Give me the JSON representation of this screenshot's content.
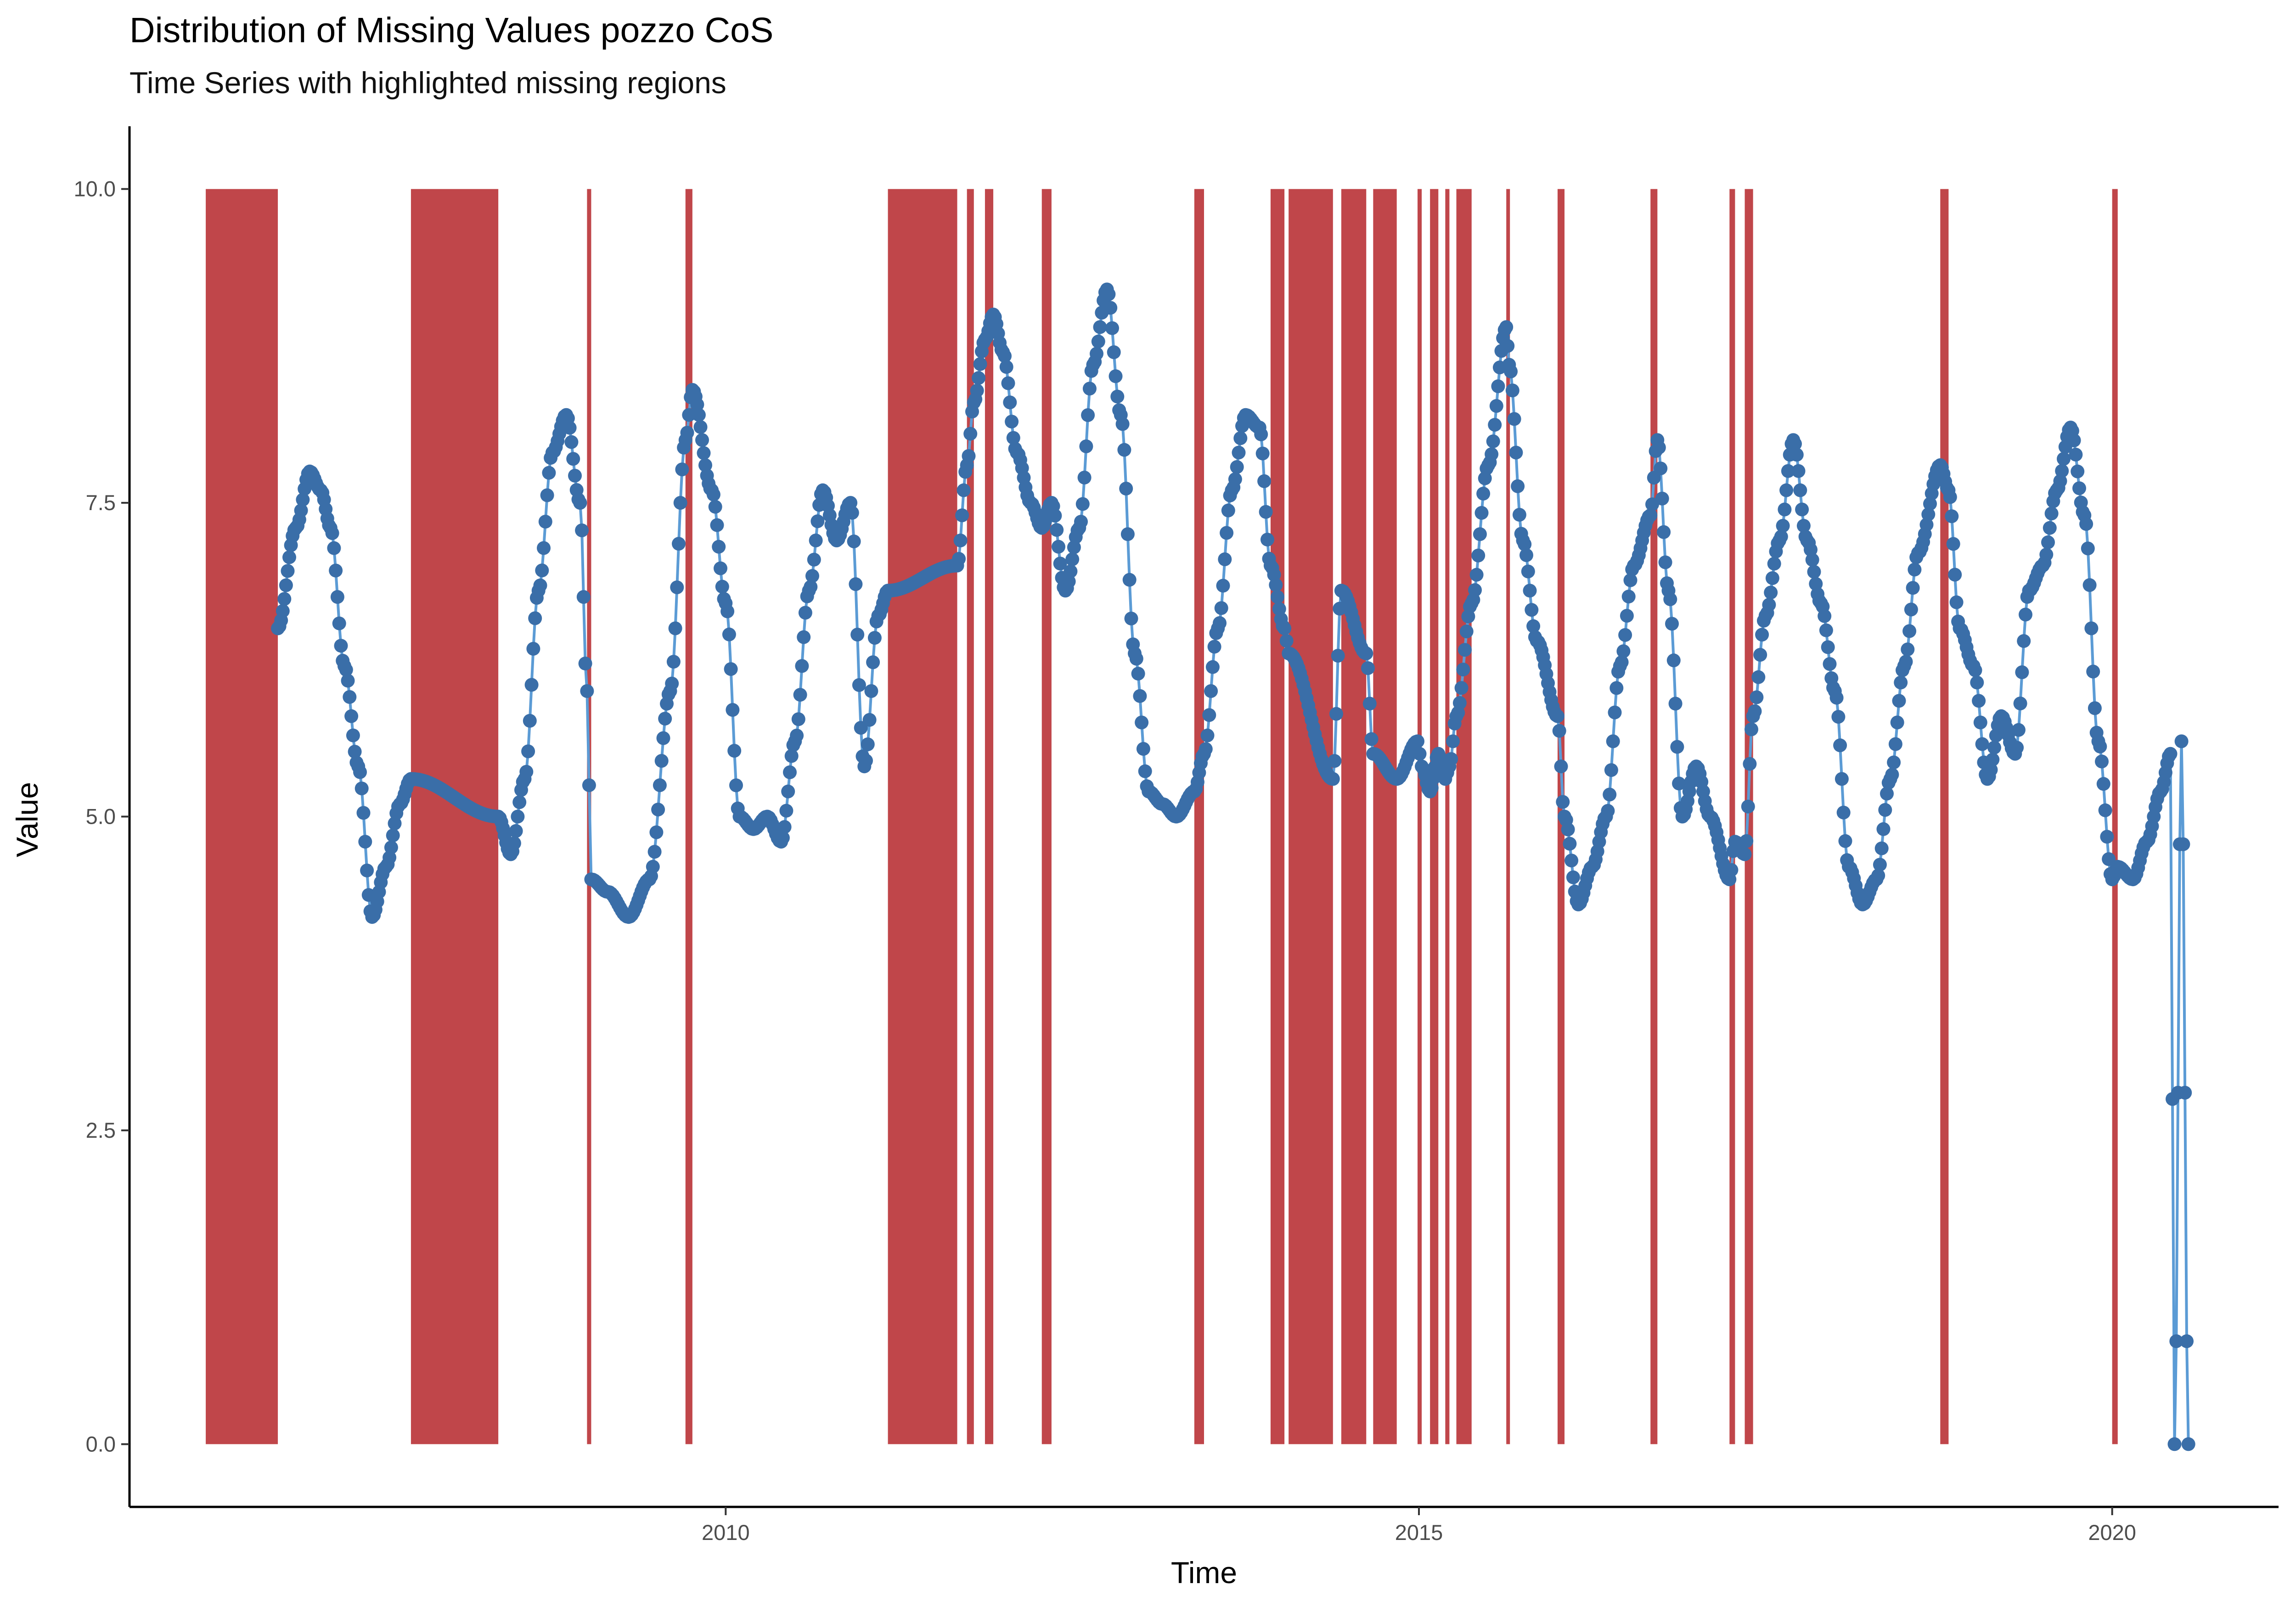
{
  "chart_data": {
    "type": "line",
    "title": "Distribution of Missing Values pozzo CoS",
    "subtitle": "Time Series with highlighted missing regions",
    "xlabel": "Time",
    "ylabel": "Value",
    "xlim": [
      2005.7,
      2021.2
    ],
    "ylim": [
      -0.5,
      10.5
    ],
    "x_ticks": [
      2010,
      2015,
      2020
    ],
    "y_ticks": [
      0.0,
      2.5,
      5.0,
      7.5,
      10.0
    ],
    "x_tick_labels": [
      "2010",
      "2015",
      "2020"
    ],
    "y_tick_labels": [
      "0.0",
      "2.5",
      "5.0",
      "7.5",
      "10.0"
    ],
    "grid": false,
    "missing_region_color": "#c0464a",
    "series_point_color": "#3a6ea8",
    "series_line_color": "#5b9bd5",
    "missing_regions": [
      [
        2006.25,
        2006.77
      ],
      [
        2007.73,
        2008.36
      ],
      [
        2009.0,
        2009.03
      ],
      [
        2009.71,
        2009.76
      ],
      [
        2011.17,
        2011.67
      ],
      [
        2011.74,
        2011.79
      ],
      [
        2011.87,
        2011.93
      ],
      [
        2012.28,
        2012.35
      ],
      [
        2013.38,
        2013.45
      ],
      [
        2013.93,
        2014.03
      ],
      [
        2014.06,
        2014.38
      ],
      [
        2014.44,
        2014.62
      ],
      [
        2014.67,
        2014.84
      ],
      [
        2014.99,
        2015.02
      ],
      [
        2015.08,
        2015.14
      ],
      [
        2015.19,
        2015.22
      ],
      [
        2015.27,
        2015.38
      ],
      [
        2015.63,
        2015.65
      ],
      [
        2016.0,
        2016.05
      ],
      [
        2016.67,
        2016.72
      ],
      [
        2017.24,
        2017.28
      ],
      [
        2017.35,
        2017.41
      ],
      [
        2018.76,
        2018.82
      ],
      [
        2020.0,
        2020.04
      ]
    ],
    "series": [
      {
        "x": [
          2006.77,
          2006.9,
          2007.0,
          2007.08,
          2007.15,
          2007.25,
          2007.35,
          2007.45,
          2007.55,
          2007.65,
          2007.73,
          2008.36,
          2008.45,
          2008.55,
          2008.65,
          2008.75,
          2008.85,
          2008.95,
          2009.0,
          2009.03,
          2009.15,
          2009.3,
          2009.45,
          2009.6,
          2009.71,
          2009.76,
          2009.9,
          2010.0,
          2010.1,
          2010.2,
          2010.3,
          2010.4,
          2010.5,
          2010.6,
          2010.7,
          2010.8,
          2010.9,
          2011.0,
          2011.1,
          2011.17,
          2011.67,
          2011.74,
          2011.79,
          2011.87,
          2011.93,
          2012.0,
          2012.1,
          2012.2,
          2012.28,
          2012.35,
          2012.45,
          2012.55,
          2012.65,
          2012.75,
          2012.85,
          2012.95,
          2013.05,
          2013.15,
          2013.25,
          2013.38,
          2013.45,
          2013.55,
          2013.65,
          2013.75,
          2013.85,
          2013.93,
          2014.03,
          2014.06,
          2014.38,
          2014.44,
          2014.62,
          2014.67,
          2014.84,
          2014.99,
          2015.02,
          2015.08,
          2015.14,
          2015.19,
          2015.22,
          2015.27,
          2015.38,
          2015.5,
          2015.63,
          2015.65,
          2015.75,
          2015.85,
          2016.0,
          2016.05,
          2016.15,
          2016.25,
          2016.35,
          2016.45,
          2016.55,
          2016.67,
          2016.72,
          2016.8,
          2016.9,
          2017.0,
          2017.1,
          2017.24,
          2017.28,
          2017.35,
          2017.41,
          2017.5,
          2017.6,
          2017.7,
          2017.8,
          2017.9,
          2018.0,
          2018.1,
          2018.2,
          2018.3,
          2018.4,
          2018.5,
          2018.6,
          2018.76,
          2018.82,
          2018.9,
          2019.0,
          2019.1,
          2019.2,
          2019.3,
          2019.4,
          2019.5,
          2019.6,
          2019.7,
          2019.8,
          2019.9,
          2020.0,
          2020.04,
          2020.15,
          2020.25,
          2020.35,
          2020.42,
          2020.45,
          2020.5,
          2020.55
        ],
        "y": [
          6.5,
          7.3,
          7.75,
          7.6,
          7.3,
          6.2,
          5.4,
          4.2,
          4.6,
          5.1,
          5.3,
          5.0,
          4.7,
          5.3,
          6.8,
          7.9,
          8.2,
          7.5,
          6.0,
          4.5,
          4.4,
          4.2,
          4.5,
          6.0,
          8.0,
          8.4,
          7.6,
          6.7,
          5.0,
          4.9,
          5.0,
          4.8,
          5.6,
          6.8,
          7.6,
          7.2,
          7.5,
          5.4,
          6.6,
          6.8,
          7.0,
          7.8,
          8.3,
          8.8,
          9.0,
          8.7,
          7.9,
          7.5,
          7.3,
          7.5,
          6.8,
          7.3,
          8.6,
          9.2,
          8.2,
          6.3,
          5.2,
          5.1,
          5.0,
          5.2,
          5.5,
          6.5,
          7.6,
          8.2,
          8.1,
          7.0,
          6.5,
          6.3,
          5.3,
          6.8,
          6.3,
          5.5,
          5.3,
          5.6,
          5.4,
          5.2,
          5.5,
          5.3,
          5.4,
          5.8,
          6.7,
          7.8,
          8.9,
          8.6,
          7.2,
          6.4,
          5.8,
          5.0,
          4.3,
          4.6,
          5.0,
          6.2,
          7.0,
          7.4,
          8.0,
          6.8,
          5.0,
          5.4,
          5.0,
          4.5,
          4.8,
          4.7,
          5.8,
          6.6,
          7.2,
          8.0,
          7.2,
          6.7,
          6.0,
          4.6,
          4.3,
          4.5,
          5.3,
          6.2,
          7.1,
          7.8,
          7.6,
          6.5,
          6.2,
          5.3,
          5.8,
          5.5,
          6.8,
          7.0,
          7.6,
          8.1,
          7.4,
          5.6,
          4.5,
          4.6,
          4.5,
          4.8,
          5.2,
          5.5,
          0.0,
          5.6,
          0.0
        ]
      }
    ]
  }
}
